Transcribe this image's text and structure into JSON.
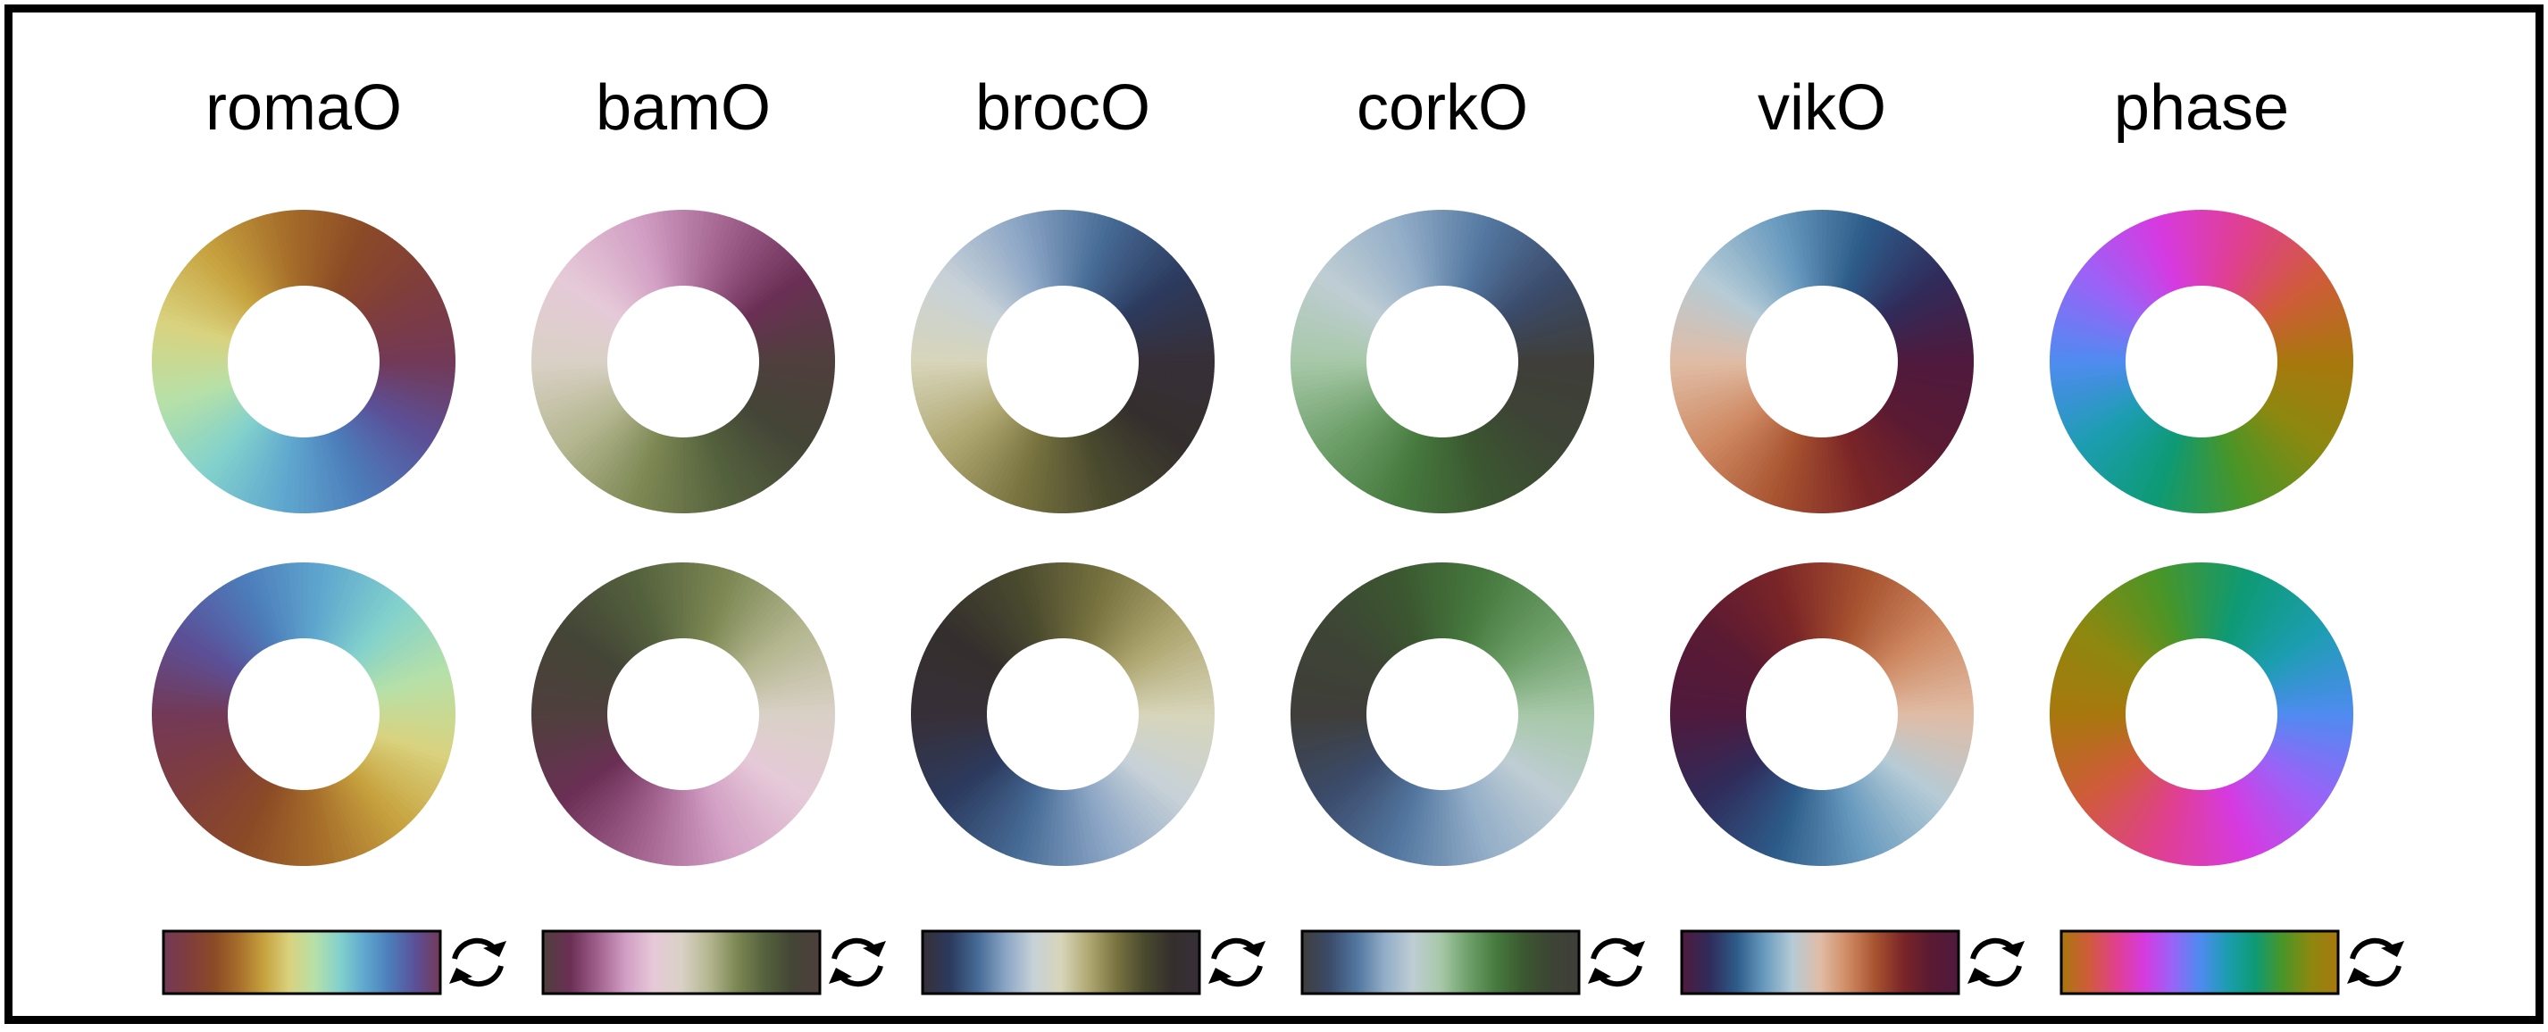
{
  "colormaps": [
    {
      "name": "romaO",
      "icon": "cycle-arrows-icon",
      "stops": [
        "#733957",
        "#7f3d3d",
        "#8b4a26",
        "#a66e2a",
        "#c7a23e",
        "#d9d27e",
        "#b7e0a8",
        "#82d1cc",
        "#5fa7cf",
        "#4c7cba",
        "#5b5098",
        "#733957"
      ]
    },
    {
      "name": "bamO",
      "icon": "cycle-arrows-icon",
      "stops": [
        "#4f3f3d",
        "#6b2f55",
        "#a2628f",
        "#d29fc4",
        "#e6c9d8",
        "#d9d1c6",
        "#b4b690",
        "#7c8753",
        "#55623d",
        "#434536",
        "#4f3f3d"
      ]
    },
    {
      "name": "brocO",
      "icon": "cycle-arrows-icon",
      "stops": [
        "#372f38",
        "#2c3a5e",
        "#466b96",
        "#8ba5c5",
        "#c7d1d8",
        "#d7d5ba",
        "#b0a872",
        "#787340",
        "#4a4a2e",
        "#342f2d",
        "#372f38"
      ]
    },
    {
      "name": "corkO",
      "icon": "cycle-arrows-icon",
      "stops": [
        "#3f3e3a",
        "#3b4b6b",
        "#5377a0",
        "#93aec8",
        "#bfcdd4",
        "#a7c8a8",
        "#6ea06a",
        "#467a3e",
        "#3b5730",
        "#3d4435",
        "#3f3e3a"
      ]
    },
    {
      "name": "vikO",
      "icon": "cycle-arrows-icon",
      "stops": [
        "#4f1a3d",
        "#302b5a",
        "#2d5c8a",
        "#6a9bbf",
        "#b5cbd6",
        "#e0bca6",
        "#cf8a63",
        "#a7522f",
        "#7a2527",
        "#5a1a33",
        "#4f1a3d"
      ]
    },
    {
      "name": "phase",
      "icon": "cycle-arrows-icon",
      "stops": [
        "#a8780d",
        "#d05b3b",
        "#e0408f",
        "#d63ae0",
        "#9a63f7",
        "#4f8bf0",
        "#1c9db0",
        "#0e9a74",
        "#4a9527",
        "#8c8810",
        "#a8780d"
      ]
    }
  ],
  "layout_note": "top row rings start at the right; bottom row rings are rotated by half a turn"
}
